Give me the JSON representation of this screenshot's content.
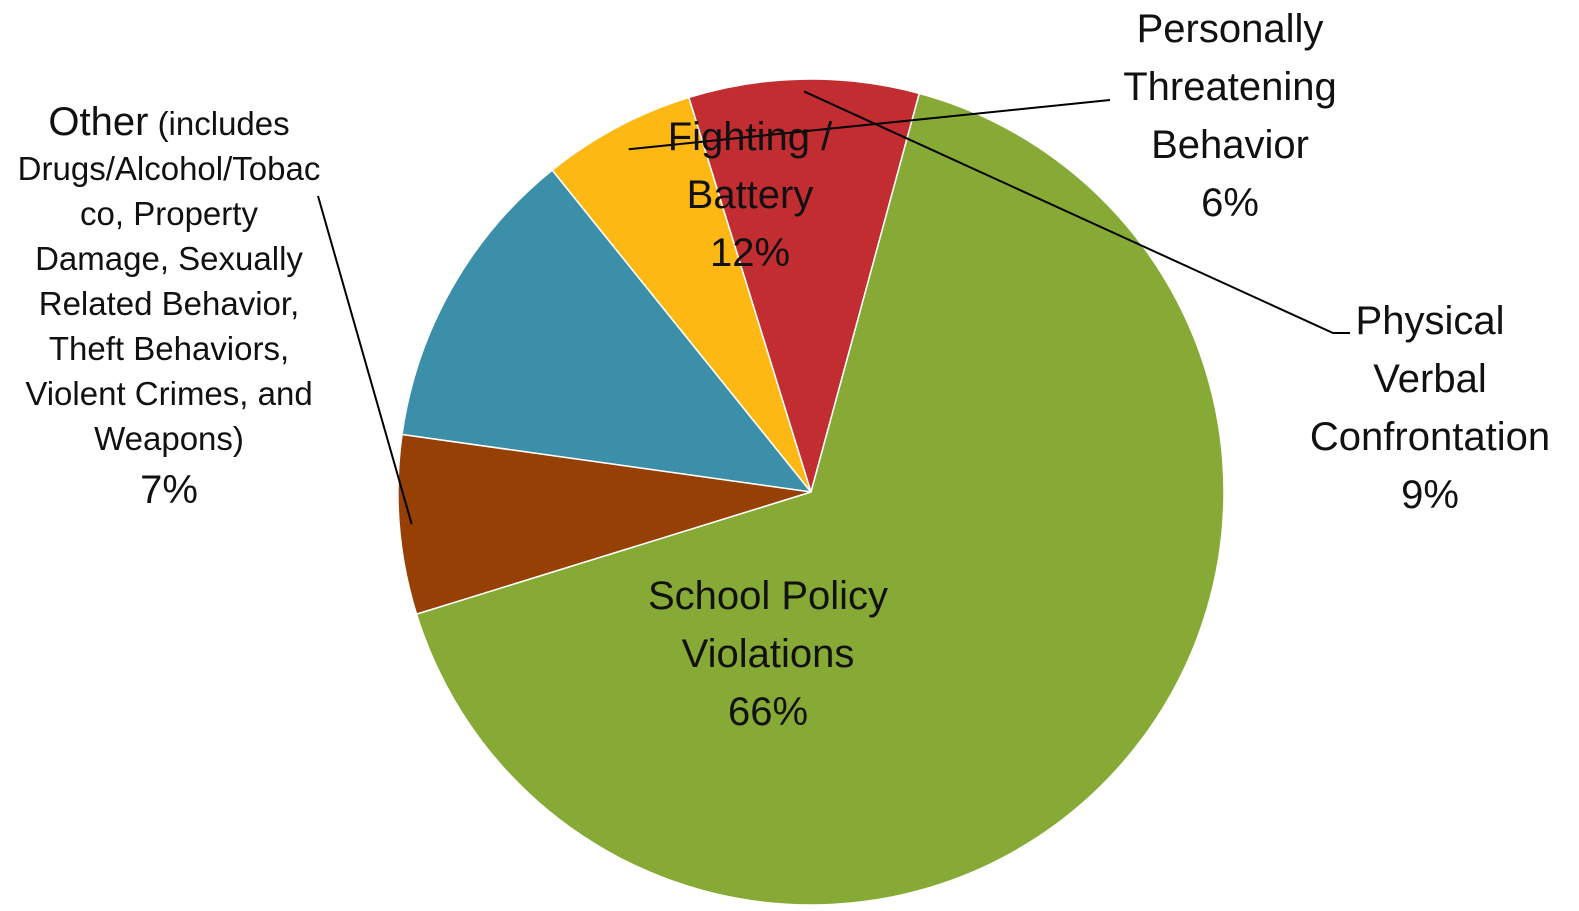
{
  "chart_data": {
    "type": "pie",
    "title": "",
    "slices": [
      {
        "key": "fighting",
        "label_lines": [
          "Fighting /",
          "Battery"
        ],
        "pct_label": "12%",
        "value": 12,
        "color": "#3B8FA8"
      },
      {
        "key": "threat",
        "label_lines": [
          "Personally",
          "Threatening",
          "Behavior"
        ],
        "pct_label": "6%",
        "value": 6,
        "color": "#FDB813"
      },
      {
        "key": "physical",
        "label_lines": [
          "Physical",
          "Verbal",
          "Confrontation"
        ],
        "pct_label": "9%",
        "value": 9,
        "color": "#C22D32"
      },
      {
        "key": "school",
        "label_lines": [
          "School Policy",
          "Violations"
        ],
        "pct_label": "66%",
        "value": 66,
        "color": "#86AA35"
      },
      {
        "key": "other",
        "label_lines": [
          "Other",
          "(includes",
          "Drugs/Alcohol/Tobac",
          "co,  Property",
          "Damage, Sexually",
          "Related Behavior,",
          "Theft Behaviors,",
          "Violent Crimes, and",
          "Weapons)"
        ],
        "pct_label": "7%",
        "value": 7,
        "color": "#964005"
      }
    ]
  }
}
